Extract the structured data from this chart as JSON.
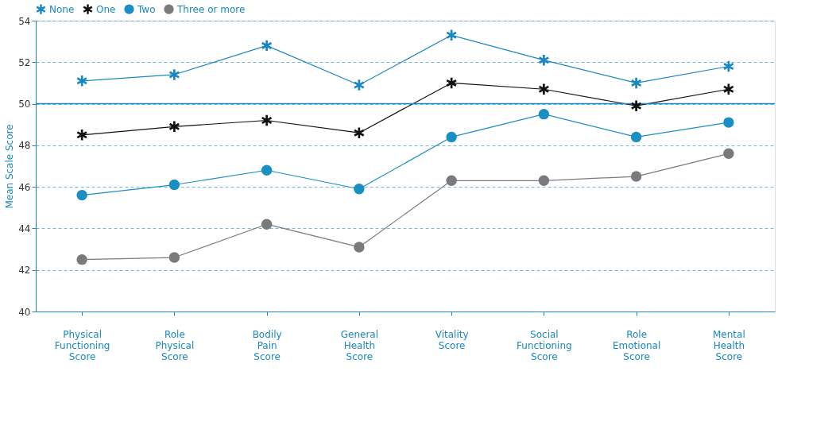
{
  "chart_data": {
    "type": "line",
    "ylabel": "Mean Scale Score",
    "categories": [
      "Physical Functioning Score",
      "Role Physical Score",
      "Bodily Pain Score",
      "General Health Score",
      "Vitality Score",
      "Social Functioning Score",
      "Role Emotional Score",
      "Mental Health Score"
    ],
    "series": [
      {
        "name": "None",
        "color": "#1a88c0",
        "marker": "cross",
        "values": [
          51.1,
          51.4,
          52.8,
          50.9,
          53.3,
          52.1,
          51.0,
          51.8
        ]
      },
      {
        "name": "One",
        "color": "#111111",
        "marker": "cross",
        "values": [
          48.5,
          48.9,
          49.2,
          48.6,
          51.0,
          50.7,
          49.9,
          50.7
        ]
      },
      {
        "name": "Two",
        "color": "#1a8fc4",
        "marker": "circle",
        "values": [
          45.6,
          46.1,
          46.8,
          45.9,
          48.4,
          49.5,
          48.4,
          49.1
        ]
      },
      {
        "name": "Three or more",
        "color": "#7a7a7a",
        "marker": "circle",
        "values": [
          42.5,
          42.6,
          44.2,
          43.1,
          46.3,
          46.3,
          46.5,
          47.6
        ]
      }
    ],
    "ylim": [
      40,
      54
    ],
    "yticks": [
      40,
      42,
      44,
      46,
      48,
      50,
      52,
      54
    ],
    "grid": "y",
    "legend": "top left",
    "ref_lines": [
      {
        "axis": "y",
        "value": 50,
        "color": "#1a88c0",
        "line_style": "solid"
      }
    ]
  }
}
